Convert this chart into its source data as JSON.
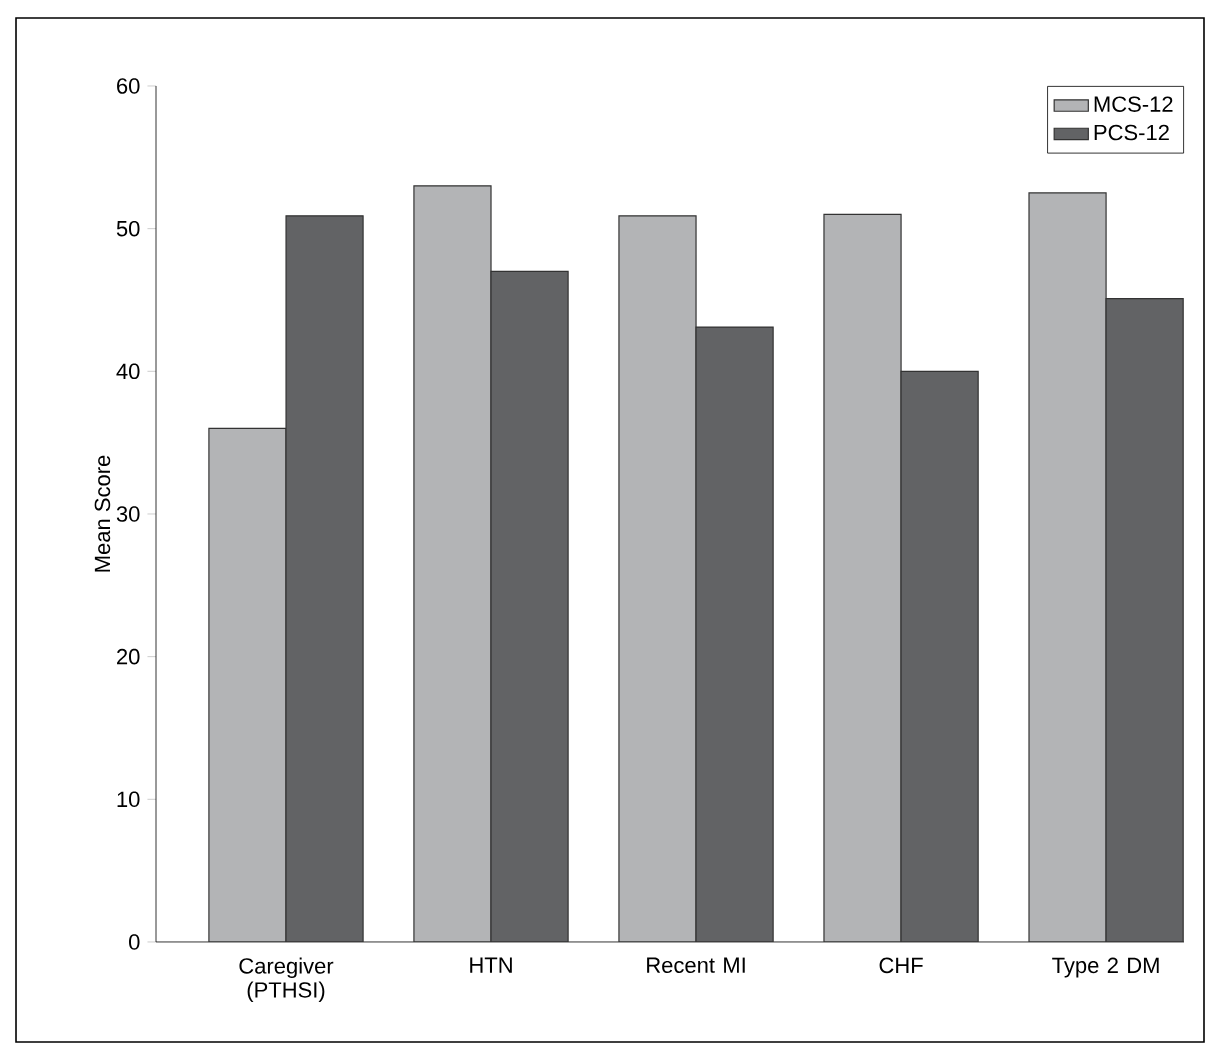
{
  "chart_data": {
    "type": "bar",
    "ylabel": "Mean Score",
    "categories": [
      "Caregiver (PTHSI)",
      "HTN",
      "Recent MI",
      "CHF",
      "Type 2 DM"
    ],
    "series": [
      {
        "name": "MCS-12",
        "color": "#b3b4b6",
        "values": [
          36.0,
          53.0,
          50.9,
          51.0,
          52.5
        ]
      },
      {
        "name": "PCS-12",
        "color": "#626365",
        "values": [
          50.9,
          47.0,
          43.1,
          40.0,
          45.1
        ]
      }
    ],
    "ylim": [
      0,
      60
    ],
    "yticks": [
      0,
      10,
      20,
      30,
      40,
      50,
      60
    ],
    "grid": false,
    "legend": "top right"
  }
}
